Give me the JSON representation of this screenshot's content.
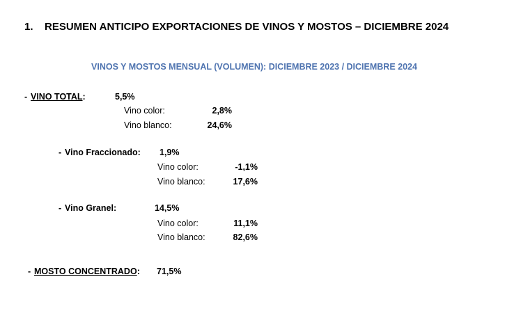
{
  "header": {
    "number": "1.",
    "title": "RESUMEN ANTICIPO EXPORTACIONES DE VINOS Y MOSTOS – DICIEMBRE 2024",
    "subtitle": "VINOS Y MOSTOS MENSUAL (VOLUMEN): DICIEMBRE 2023 / DICIEMBRE 2024"
  },
  "sections": [
    {
      "marker": "-",
      "label": "VINO TOTAL",
      "suffix": ":",
      "value": "5,5%",
      "items": [
        {
          "label": "Vino color:",
          "value": "2,8%"
        },
        {
          "label": "Vino blanco:",
          "value": "24,6%"
        }
      ]
    },
    {
      "marker": "-",
      "label": "Vino Fraccionado",
      "suffix": ":",
      "value": "1,9%",
      "items": [
        {
          "label": "Vino color:",
          "value": "-1,1%"
        },
        {
          "label": "Vino blanco:",
          "value": "17,6%"
        }
      ]
    },
    {
      "marker": "-",
      "label": "Vino Granel",
      "suffix": ":",
      "value": "14,5%",
      "items": [
        {
          "label": "Vino color:",
          "value": "11,1%"
        },
        {
          "label": "Vino blanco:",
          "value": "82,6%"
        }
      ]
    },
    {
      "marker": "-",
      "label": "MOSTO CONCENTRADO",
      "suffix": ":",
      "value": "71,5%",
      "items": []
    }
  ]
}
